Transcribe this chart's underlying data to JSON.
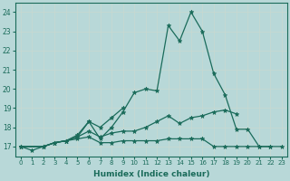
{
  "xlabel": "Humidex (Indice chaleur)",
  "bg_color": "#b8d8d8",
  "grid_color": "#d4e8e8",
  "line_color": "#1a6b5a",
  "xlim": [
    -0.5,
    23.5
  ],
  "ylim": [
    16.5,
    24.5
  ],
  "yticks": [
    17,
    18,
    19,
    20,
    21,
    22,
    23,
    24
  ],
  "xticks": [
    0,
    1,
    2,
    3,
    4,
    5,
    6,
    7,
    8,
    9,
    10,
    11,
    12,
    13,
    14,
    15,
    16,
    17,
    18,
    19,
    20,
    21,
    22,
    23
  ],
  "lines": [
    {
      "x": [
        0,
        1,
        2,
        3,
        4,
        5,
        6,
        7,
        8,
        9,
        10,
        11,
        12,
        13,
        14,
        15,
        16,
        17,
        18,
        19,
        20,
        21,
        22
      ],
      "y": [
        17.0,
        16.8,
        17.0,
        17.2,
        17.3,
        17.5,
        18.3,
        17.4,
        18.0,
        18.8,
        19.8,
        20.0,
        19.9,
        23.3,
        22.5,
        24.0,
        23.0,
        20.8,
        19.7,
        17.9,
        17.9,
        17.0,
        17.0
      ]
    },
    {
      "x": [
        0,
        2,
        3,
        4,
        5,
        6,
        7,
        8,
        9
      ],
      "y": [
        17.0,
        17.0,
        17.2,
        17.3,
        17.6,
        18.3,
        18.0,
        18.5,
        19.0
      ]
    },
    {
      "x": [
        0,
        2,
        3,
        4,
        5,
        6,
        7,
        8,
        9,
        10,
        11,
        12,
        13,
        14,
        15,
        16,
        17,
        18,
        19
      ],
      "y": [
        17.0,
        17.0,
        17.2,
        17.3,
        17.5,
        17.8,
        17.5,
        17.7,
        17.8,
        17.8,
        18.0,
        18.3,
        18.6,
        18.2,
        18.5,
        18.6,
        18.8,
        18.9,
        18.7
      ]
    },
    {
      "x": [
        0,
        2,
        3,
        4,
        5,
        6,
        7,
        8,
        9,
        10,
        11,
        12,
        13,
        14,
        15,
        16,
        17,
        18,
        19,
        20,
        21,
        22,
        23
      ],
      "y": [
        17.0,
        17.0,
        17.2,
        17.3,
        17.4,
        17.5,
        17.2,
        17.2,
        17.3,
        17.3,
        17.3,
        17.3,
        17.4,
        17.4,
        17.4,
        17.4,
        17.0,
        17.0,
        17.0,
        17.0,
        17.0,
        17.0,
        17.0
      ]
    }
  ]
}
